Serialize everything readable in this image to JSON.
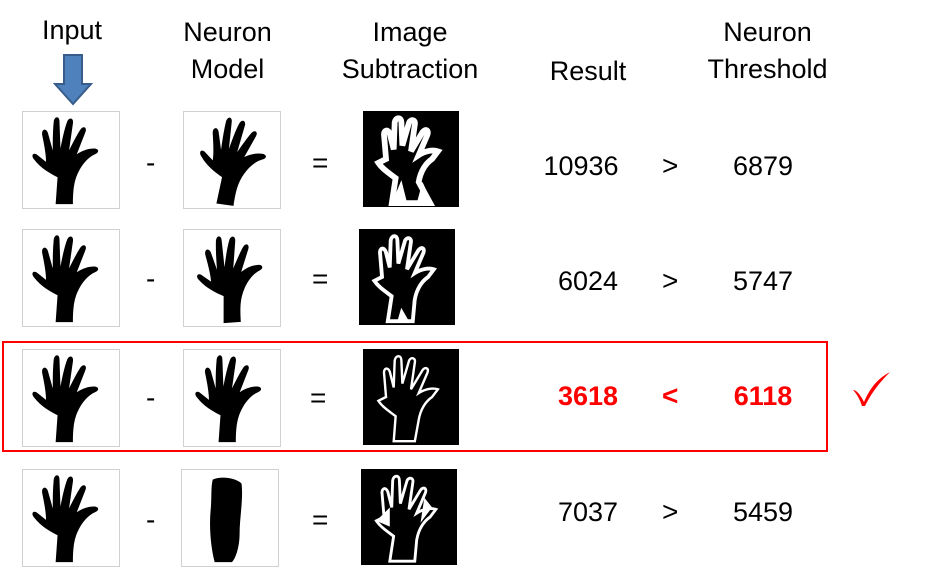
{
  "headers": {
    "input": "Input",
    "neuron_model": [
      "Neuron",
      "Model"
    ],
    "image_subtraction": [
      "Image",
      "Subtraction"
    ],
    "result": "Result",
    "neuron_threshold": [
      "Neuron",
      "Threshold"
    ]
  },
  "operators": {
    "minus": "-",
    "equals": "="
  },
  "rows": [
    {
      "result": "10936",
      "comparison": ">",
      "threshold": "6879",
      "highlighted": false
    },
    {
      "result": "6024",
      "comparison": ">",
      "threshold": "5747",
      "highlighted": false
    },
    {
      "result": "3618",
      "comparison": "<",
      "threshold": "6118",
      "highlighted": true
    },
    {
      "result": "7037",
      "comparison": ">",
      "threshold": "5459",
      "highlighted": false
    }
  ],
  "colors": {
    "arrow_fill": "#4f81bd",
    "arrow_stroke": "#385d8a",
    "highlight": "#ff0000"
  },
  "icons": {
    "arrow": "down-arrow-icon",
    "match": "checkmark-icon"
  }
}
